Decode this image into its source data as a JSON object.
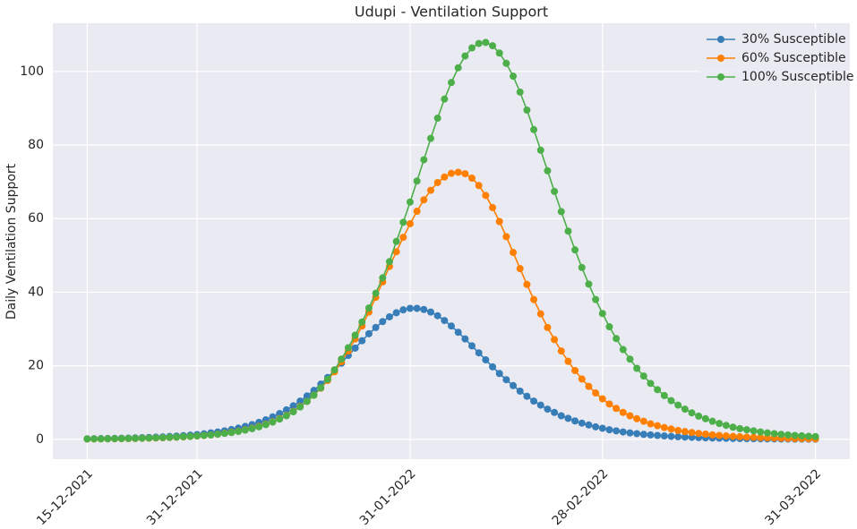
{
  "chart_data": {
    "type": "line",
    "title": "Udupi - Ventilation Support",
    "y_label": "Daily Ventilation Support",
    "x": [
      "15-12-2021",
      "16-12-2021",
      "17-12-2021",
      "18-12-2021",
      "19-12-2021",
      "20-12-2021",
      "21-12-2021",
      "22-12-2021",
      "23-12-2021",
      "24-12-2021",
      "25-12-2021",
      "26-12-2021",
      "27-12-2021",
      "28-12-2021",
      "29-12-2021",
      "30-12-2021",
      "31-12-2021",
      "01-01-2022",
      "02-01-2022",
      "03-01-2022",
      "04-01-2022",
      "05-01-2022",
      "06-01-2022",
      "07-01-2022",
      "08-01-2022",
      "09-01-2022",
      "10-01-2022",
      "11-01-2022",
      "12-01-2022",
      "13-01-2022",
      "14-01-2022",
      "15-01-2022",
      "16-01-2022",
      "17-01-2022",
      "18-01-2022",
      "19-01-2022",
      "20-01-2022",
      "21-01-2022",
      "22-01-2022",
      "23-01-2022",
      "24-01-2022",
      "25-01-2022",
      "26-01-2022",
      "27-01-2022",
      "28-01-2022",
      "29-01-2022",
      "30-01-2022",
      "31-01-2022",
      "01-02-2022",
      "02-02-2022",
      "03-02-2022",
      "04-02-2022",
      "05-02-2022",
      "06-02-2022",
      "07-02-2022",
      "08-02-2022",
      "09-02-2022",
      "10-02-2022",
      "11-02-2022",
      "12-02-2022",
      "13-02-2022",
      "14-02-2022",
      "15-02-2022",
      "16-02-2022",
      "17-02-2022",
      "18-02-2022",
      "19-02-2022",
      "20-02-2022",
      "21-02-2022",
      "22-02-2022",
      "23-02-2022",
      "24-02-2022",
      "25-02-2022",
      "26-02-2022",
      "27-02-2022",
      "28-02-2022",
      "01-03-2022",
      "02-03-2022",
      "03-03-2022",
      "04-03-2022",
      "05-03-2022",
      "06-03-2022",
      "07-03-2022",
      "08-03-2022",
      "09-03-2022",
      "10-03-2022",
      "11-03-2022",
      "12-03-2022",
      "13-03-2022",
      "14-03-2022",
      "15-03-2022",
      "16-03-2022",
      "17-03-2022",
      "18-03-2022",
      "19-03-2022",
      "20-03-2022",
      "21-03-2022",
      "22-03-2022",
      "23-03-2022",
      "24-03-2022",
      "25-03-2022",
      "26-03-2022",
      "27-03-2022",
      "28-03-2022",
      "29-03-2022",
      "30-03-2022",
      "31-03-2022"
    ],
    "series": [
      {
        "name": "30% Susceptible",
        "color": "#377eb8",
        "values": [
          0.15,
          0.17,
          0.19,
          0.22,
          0.25,
          0.29,
          0.33,
          0.38,
          0.44,
          0.5,
          0.58,
          0.66,
          0.76,
          0.87,
          1.0,
          1.15,
          1.3,
          1.5,
          1.75,
          2.0,
          2.3,
          2.65,
          3.05,
          3.5,
          4.0,
          4.6,
          5.3,
          6.1,
          7.0,
          8.0,
          9.1,
          10.4,
          11.8,
          13.3,
          15.0,
          16.8,
          18.7,
          20.7,
          22.8,
          24.8,
          26.8,
          28.7,
          30.4,
          32.0,
          33.3,
          34.4,
          35.2,
          35.6,
          35.6,
          35.3,
          34.6,
          33.6,
          32.3,
          30.8,
          29.1,
          27.3,
          25.4,
          23.5,
          21.6,
          19.7,
          17.9,
          16.2,
          14.6,
          13.1,
          11.7,
          10.4,
          9.3,
          8.2,
          7.3,
          6.4,
          5.7,
          5.0,
          4.4,
          3.9,
          3.4,
          3.0,
          2.6,
          2.3,
          2.0,
          1.75,
          1.55,
          1.35,
          1.2,
          1.05,
          0.92,
          0.8,
          0.7,
          0.62,
          0.54,
          0.47,
          0.41,
          0.36,
          0.32,
          0.28,
          0.24,
          0.21,
          0.18,
          0.16,
          0.14,
          0.12,
          0.11,
          0.09,
          0.08,
          0.07,
          0.06,
          0.05,
          0.05
        ]
      },
      {
        "name": "60% Susceptible",
        "color": "#ff7f00",
        "values": [
          0.08,
          0.09,
          0.11,
          0.13,
          0.15,
          0.17,
          0.2,
          0.23,
          0.27,
          0.31,
          0.36,
          0.42,
          0.49,
          0.57,
          0.66,
          0.77,
          0.9,
          1.05,
          1.2,
          1.4,
          1.65,
          1.9,
          2.2,
          2.6,
          3.0,
          3.5,
          4.1,
          4.8,
          5.6,
          6.5,
          7.6,
          8.9,
          10.3,
          12.0,
          13.9,
          16.0,
          18.4,
          21.1,
          24.0,
          27.3,
          30.8,
          34.6,
          38.6,
          42.8,
          47.0,
          51.0,
          54.9,
          58.6,
          62.0,
          65.1,
          67.7,
          69.8,
          71.3,
          72.3,
          72.6,
          72.2,
          71.0,
          69.0,
          66.3,
          63.0,
          59.2,
          55.1,
          50.8,
          46.4,
          42.1,
          38.0,
          34.1,
          30.4,
          27.1,
          24.0,
          21.2,
          18.7,
          16.4,
          14.4,
          12.6,
          11.0,
          9.6,
          8.4,
          7.3,
          6.4,
          5.6,
          4.9,
          4.2,
          3.7,
          3.2,
          2.8,
          2.4,
          2.1,
          1.85,
          1.6,
          1.4,
          1.2,
          1.05,
          0.92,
          0.8,
          0.7,
          0.6,
          0.52,
          0.46,
          0.4,
          0.35,
          0.3,
          0.26,
          0.23,
          0.2,
          0.17,
          0.15
        ]
      },
      {
        "name": "100% Susceptible",
        "color": "#4daf4a",
        "values": [
          0.1,
          0.11,
          0.13,
          0.15,
          0.17,
          0.2,
          0.23,
          0.26,
          0.3,
          0.35,
          0.4,
          0.46,
          0.53,
          0.61,
          0.7,
          0.8,
          0.92,
          1.05,
          1.2,
          1.4,
          1.6,
          1.85,
          2.15,
          2.5,
          2.9,
          3.4,
          4.0,
          4.7,
          5.5,
          6.4,
          7.5,
          8.8,
          10.3,
          12.0,
          14.0,
          16.3,
          18.9,
          21.8,
          24.9,
          28.3,
          31.9,
          35.7,
          39.7,
          43.9,
          48.3,
          53.8,
          59.0,
          64.5,
          70.2,
          76.0,
          81.8,
          87.3,
          92.5,
          97.0,
          101.0,
          104.2,
          106.4,
          107.6,
          107.9,
          107.0,
          105.0,
          102.2,
          98.7,
          94.4,
          89.5,
          84.2,
          78.6,
          73.0,
          67.4,
          61.9,
          56.6,
          51.5,
          46.7,
          42.2,
          38.0,
          34.2,
          30.6,
          27.4,
          24.4,
          21.8,
          19.3,
          17.2,
          15.2,
          13.5,
          11.9,
          10.5,
          9.3,
          8.2,
          7.2,
          6.3,
          5.6,
          4.9,
          4.3,
          3.8,
          3.3,
          2.9,
          2.6,
          2.3,
          2.0,
          1.75,
          1.55,
          1.35,
          1.2,
          1.05,
          0.95,
          0.85,
          0.75
        ]
      }
    ],
    "xlim": [
      "10-12-2021",
      "05-04-2022"
    ],
    "xticks": [
      "15-12-2021",
      "31-12-2021",
      "31-01-2022",
      "28-02-2022",
      "31-03-2022"
    ],
    "ylim": [
      -5.4,
      113.1
    ],
    "yticks": [
      0,
      20,
      40,
      60,
      80,
      100
    ],
    "grid": true,
    "legend": "upper right"
  }
}
